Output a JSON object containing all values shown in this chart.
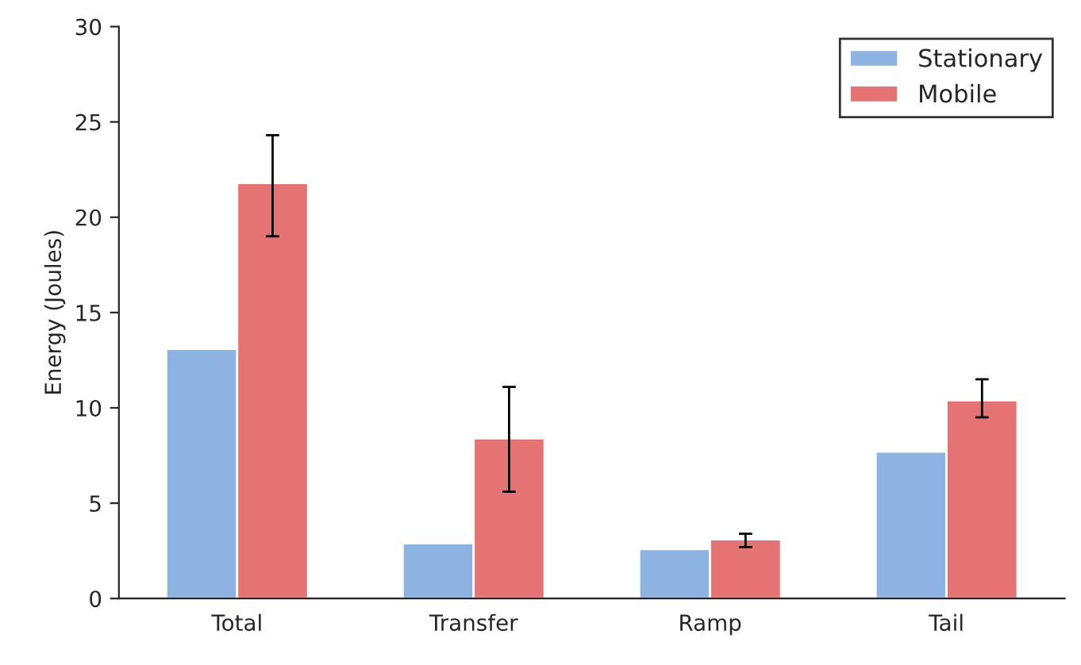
{
  "chart_data": {
    "type": "bar",
    "ylabel": "Energy (Joules)",
    "categories": [
      "Total",
      "Transfer",
      "Ramp",
      "Tail"
    ],
    "series": [
      {
        "name": "Stationary",
        "color": "#8db3e2",
        "values": [
          13.1,
          2.9,
          2.6,
          7.7
        ]
      },
      {
        "name": "Mobile",
        "color": "#e57373",
        "values": [
          21.8,
          8.4,
          3.1,
          10.4
        ],
        "errors": [
          [
            19.0,
            24.3
          ],
          [
            5.6,
            11.1
          ],
          [
            2.7,
            3.4
          ],
          [
            9.5,
            11.5
          ]
        ]
      }
    ],
    "ylim": [
      0,
      30
    ],
    "yticks": [
      0,
      5,
      10,
      15,
      20,
      25,
      30
    ],
    "grid": false,
    "legend": "top right"
  }
}
